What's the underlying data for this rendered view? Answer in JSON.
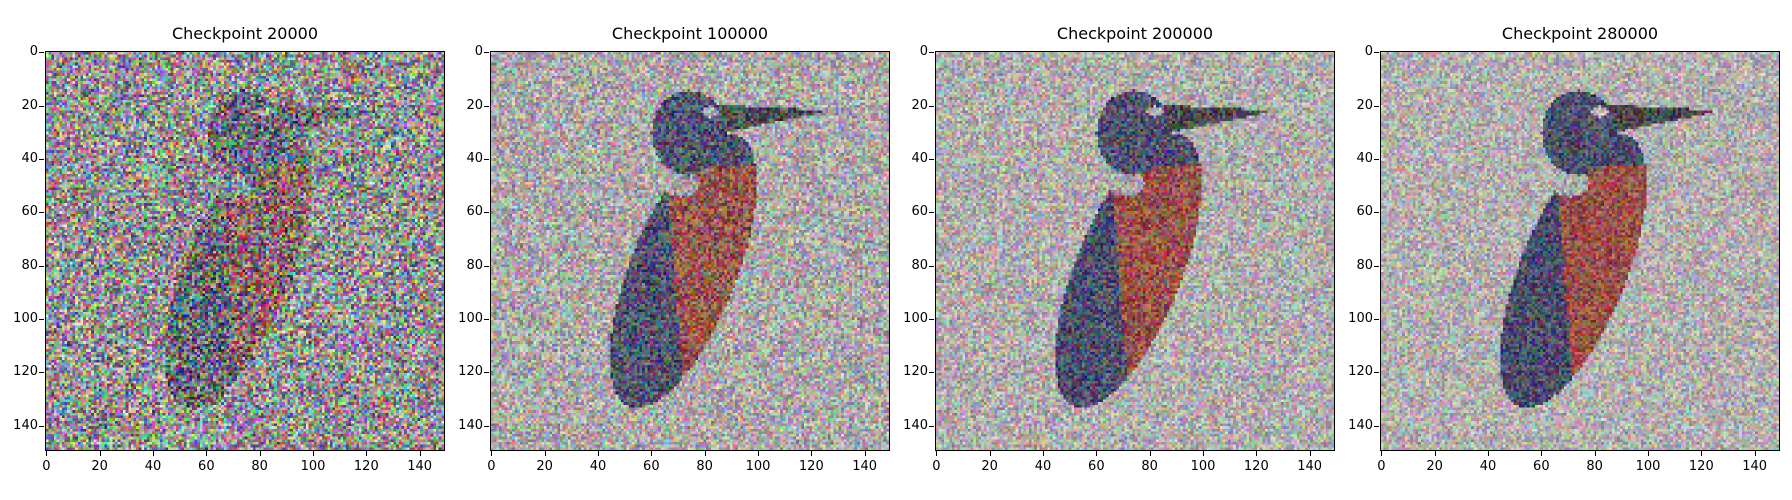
{
  "figure": {
    "panels": [
      {
        "title": "Checkpoint 20000",
        "noise_level": 0.78
      },
      {
        "title": "Checkpoint 100000",
        "noise_level": 0.5
      },
      {
        "title": "Checkpoint 200000",
        "noise_level": 0.45
      },
      {
        "title": "Checkpoint 280000",
        "noise_level": 0.42
      }
    ],
    "x_ticks": [
      "0",
      "20",
      "40",
      "60",
      "80",
      "100",
      "120",
      "140"
    ],
    "y_ticks": [
      "0",
      "20",
      "40",
      "60",
      "80",
      "100",
      "120",
      "140"
    ],
    "image_subject": "kingfisher bird on noisy background",
    "colors": {
      "bird_dark": "#1f2a5c",
      "bird_chest": "#b5311f",
      "background": "#d9d4d2"
    }
  }
}
